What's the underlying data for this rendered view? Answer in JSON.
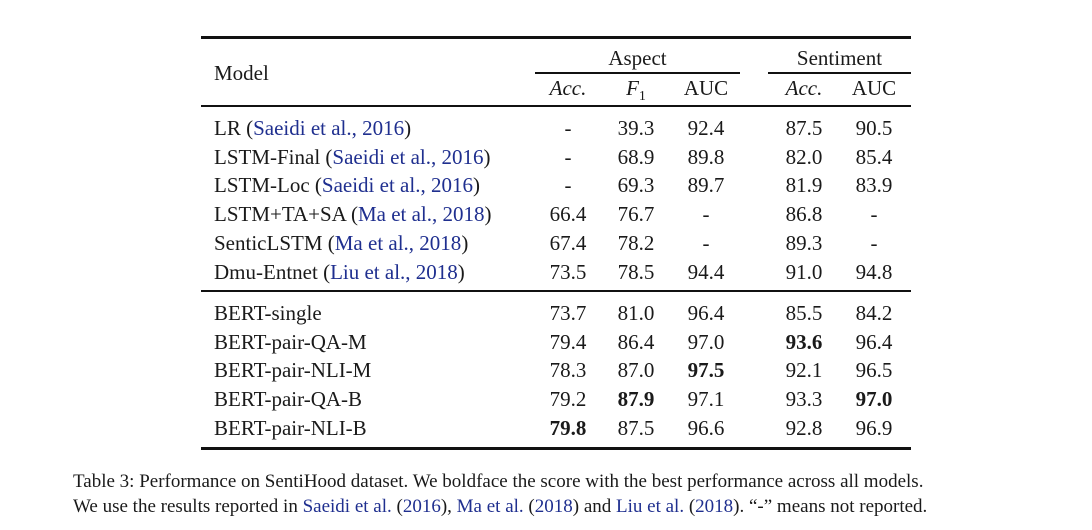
{
  "table": {
    "header": {
      "model_label": "Model",
      "aspect_label": "Aspect",
      "sentiment_label": "Sentiment",
      "aspect_cols": [
        "Acc.",
        "F",
        "AUC"
      ],
      "f1_subscript": "1",
      "sentiment_cols": [
        "Acc.",
        "AUC"
      ]
    },
    "groups": [
      {
        "rows": [
          {
            "model": "LR",
            "cite": "Saeidi et al., 2016",
            "values": [
              "-",
              "39.3",
              "92.4",
              "87.5",
              "90.5"
            ],
            "bold": []
          },
          {
            "model": "LSTM-Final",
            "cite": "Saeidi et al., 2016",
            "values": [
              "-",
              "68.9",
              "89.8",
              "82.0",
              "85.4"
            ],
            "bold": []
          },
          {
            "model": "LSTM-Loc",
            "cite": "Saeidi et al., 2016",
            "values": [
              "-",
              "69.3",
              "89.7",
              "81.9",
              "83.9"
            ],
            "bold": []
          },
          {
            "model": "LSTM+TA+SA",
            "cite": "Ma et al., 2018",
            "values": [
              "66.4",
              "76.7",
              "-",
              "86.8",
              "-"
            ],
            "bold": []
          },
          {
            "model": "SenticLSTM",
            "cite": "Ma et al., 2018",
            "values": [
              "67.4",
              "78.2",
              "-",
              "89.3",
              "-"
            ],
            "bold": []
          },
          {
            "model": "Dmu-Entnet",
            "cite": "Liu et al., 2018",
            "values": [
              "73.5",
              "78.5",
              "94.4",
              "91.0",
              "94.8"
            ],
            "bold": []
          }
        ]
      },
      {
        "rows": [
          {
            "model": "BERT-single",
            "cite": "",
            "values": [
              "73.7",
              "81.0",
              "96.4",
              "85.5",
              "84.2"
            ],
            "bold": []
          },
          {
            "model": "BERT-pair-QA-M",
            "cite": "",
            "values": [
              "79.4",
              "86.4",
              "97.0",
              "93.6",
              "96.4"
            ],
            "bold": [
              3
            ]
          },
          {
            "model": "BERT-pair-NLI-M",
            "cite": "",
            "values": [
              "78.3",
              "87.0",
              "97.5",
              "92.1",
              "96.5"
            ],
            "bold": [
              2
            ]
          },
          {
            "model": "BERT-pair-QA-B",
            "cite": "",
            "values": [
              "79.2",
              "87.9",
              "97.1",
              "93.3",
              "97.0"
            ],
            "bold": [
              1,
              4
            ]
          },
          {
            "model": "BERT-pair-NLI-B",
            "cite": "",
            "values": [
              "79.8",
              "87.5",
              "96.6",
              "92.8",
              "96.9"
            ],
            "bold": [
              0
            ]
          }
        ]
      }
    ]
  },
  "caption": {
    "line1": "Table 3:  Performance on SentiHood dataset. We boldface the score with the best performance across all models.",
    "line2_parts": [
      {
        "text": "We use the results reported in ",
        "cite": false
      },
      {
        "text": "Saeidi et al.",
        "cite": true
      },
      {
        "text": " (",
        "cite": false
      },
      {
        "text": "2016",
        "cite": true
      },
      {
        "text": "), ",
        "cite": false
      },
      {
        "text": "Ma et al.",
        "cite": true
      },
      {
        "text": " (",
        "cite": false
      },
      {
        "text": "2018",
        "cite": true
      },
      {
        "text": ") and ",
        "cite": false
      },
      {
        "text": "Liu et al.",
        "cite": true
      },
      {
        "text": " (",
        "cite": false
      },
      {
        "text": "2018",
        "cite": true
      },
      {
        "text": "). “-” means not reported.",
        "cite": false
      }
    ]
  },
  "colors": {
    "citation": "#1f2f8f",
    "text": "#1a1a1a"
  }
}
